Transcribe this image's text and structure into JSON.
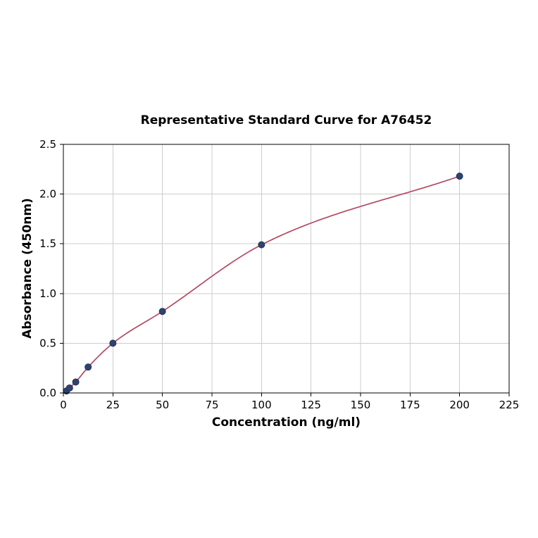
{
  "chart_data": {
    "type": "scatter",
    "title": "Representative Standard Curve for A76452",
    "xlabel": "Concentration (ng/ml)",
    "ylabel": "Absorbance (450nm)",
    "xlim": [
      0,
      225
    ],
    "ylim": [
      0,
      2.5
    ],
    "xticks": [
      0,
      25,
      50,
      75,
      100,
      125,
      150,
      175,
      200,
      225
    ],
    "yticks": [
      0.0,
      0.5,
      1.0,
      1.5,
      2.0,
      2.5
    ],
    "grid": true,
    "legend": "none",
    "series": [
      {
        "name": "standard-points",
        "x": [
          1.5625,
          3.125,
          6.25,
          12.5,
          25,
          50,
          100,
          200
        ],
        "y": [
          0.02,
          0.05,
          0.11,
          0.26,
          0.5,
          0.82,
          1.49,
          2.18
        ]
      }
    ],
    "fit_curve": "4-parameter logistic style smooth fit through points",
    "colors": {
      "point": "#2e4370",
      "point_edge": "#24335a",
      "curve": "#b34a63",
      "grid": "#cccccc",
      "axis": "#000000",
      "text": "#000000"
    }
  }
}
